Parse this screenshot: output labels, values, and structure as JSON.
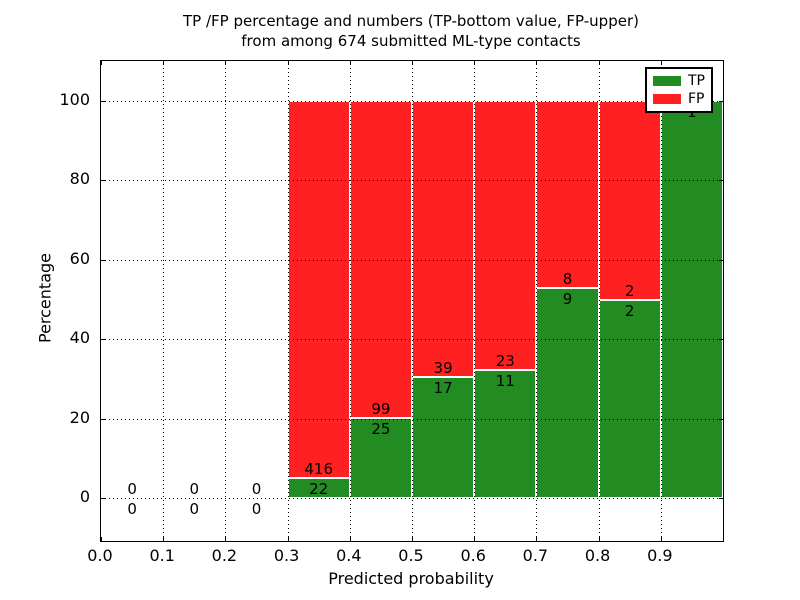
{
  "title": {
    "line1": "TP /FP percentage and numbers (TP-bottom value, FP-upper)",
    "line2": "from among 674 submitted ML-type contacts"
  },
  "axes": {
    "xlabel": "Predicted probability",
    "ylabel": "Percentage",
    "xtick_labels": [
      "0.0",
      "0.1",
      "0.2",
      "0.3",
      "0.4",
      "0.5",
      "0.6",
      "0.7",
      "0.8",
      "0.9"
    ],
    "ytick_labels": [
      "0",
      "20",
      "40",
      "60",
      "80",
      "100"
    ]
  },
  "legend": {
    "position": "upper right",
    "items": [
      {
        "label": "TP",
        "color": "#228b22"
      },
      {
        "label": "FP",
        "color": "#ff2121"
      }
    ]
  },
  "colors": {
    "tp_green": "#228b22",
    "fp_red": "#ff2121",
    "grid": "#000000",
    "background": "#ffffff"
  },
  "chart_data": {
    "type": "bar",
    "stacked": true,
    "normalized_to_percent": true,
    "title": "TP /FP percentage and numbers (TP-bottom value, FP-upper) from among 674 submitted ML-type contacts",
    "xlabel": "Predicted probability",
    "ylabel": "Percentage",
    "xlim": [
      0.0,
      1.0
    ],
    "ylim": [
      -11,
      110
    ],
    "grid": true,
    "total_contacts": 674,
    "annotation_rule": "TP count below segment boundary, FP count above",
    "bins": [
      {
        "x_range": [
          0.0,
          0.1
        ],
        "tp": 0,
        "fp": 0
      },
      {
        "x_range": [
          0.1,
          0.2
        ],
        "tp": 0,
        "fp": 0
      },
      {
        "x_range": [
          0.2,
          0.3
        ],
        "tp": 0,
        "fp": 0
      },
      {
        "x_range": [
          0.3,
          0.4
        ],
        "tp": 22,
        "fp": 416
      },
      {
        "x_range": [
          0.4,
          0.5
        ],
        "tp": 25,
        "fp": 99
      },
      {
        "x_range": [
          0.5,
          0.6
        ],
        "tp": 17,
        "fp": 39
      },
      {
        "x_range": [
          0.6,
          0.7
        ],
        "tp": 11,
        "fp": 23
      },
      {
        "x_range": [
          0.7,
          0.8
        ],
        "tp": 9,
        "fp": 8
      },
      {
        "x_range": [
          0.8,
          0.9
        ],
        "tp": 2,
        "fp": 2
      },
      {
        "x_range": [
          0.9,
          1.0
        ],
        "tp": 1,
        "fp": 0
      }
    ]
  }
}
